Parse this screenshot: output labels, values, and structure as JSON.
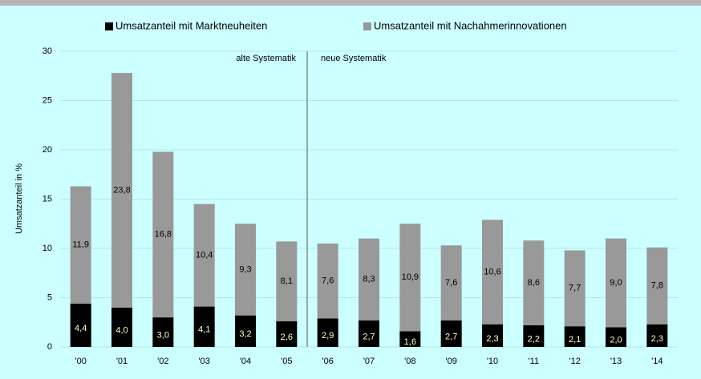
{
  "chart_data": {
    "type": "stacked_bar",
    "y_label": "Umsatzanteil in %",
    "annotations": [
      "alte Systematik",
      "neue Systematik"
    ],
    "categories": [
      "'00",
      "'01",
      "'02",
      "'03",
      "'04",
      "'05",
      "'06",
      "'07",
      "'08",
      "'09",
      "'10",
      "'11",
      "'12",
      "'13",
      "'14"
    ],
    "series": [
      {
        "name": "Umsatzanteil mit Marktneuheiten",
        "color": "#000000",
        "values": [
          4.4,
          4.0,
          3.0,
          4.1,
          3.2,
          2.6,
          2.9,
          2.7,
          1.6,
          2.7,
          2.3,
          2.2,
          2.1,
          2.0,
          2.3
        ],
        "value_labels": [
          "4,4",
          "4,0",
          "3,0",
          "4,1",
          "3,2",
          "2,6",
          "2,9",
          "2,7",
          "1,6",
          "2,7",
          "2,3",
          "2,2",
          "2,1",
          "2,0",
          "2,3"
        ]
      },
      {
        "name": "Umsatzanteil mit Nachahmerinnovationen",
        "color": "#999999",
        "values": [
          11.9,
          23.8,
          16.8,
          10.4,
          9.3,
          8.1,
          7.6,
          8.3,
          10.9,
          7.6,
          10.6,
          8.6,
          7.7,
          9.0,
          7.8
        ],
        "value_labels": [
          "11,9",
          "23,8",
          "16,8",
          "10,4",
          "9,3",
          "8,1",
          "7,6",
          "8,3",
          "10,9",
          "7,6",
          "10,6",
          "8,6",
          "7,7",
          "9,0",
          "7,8"
        ]
      }
    ],
    "ylim": [
      0,
      30
    ],
    "yticks": [
      0,
      5,
      10,
      15,
      20,
      25,
      30
    ],
    "grid": true,
    "legend": "top"
  }
}
